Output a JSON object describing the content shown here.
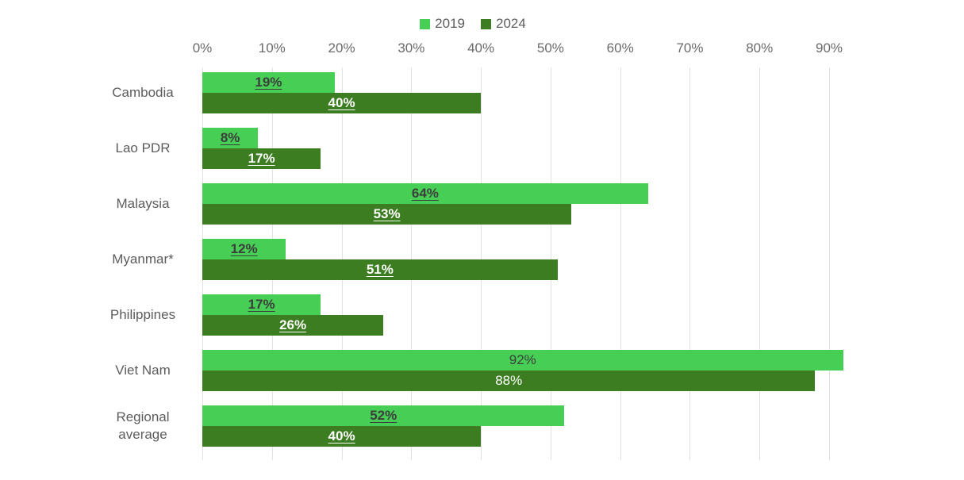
{
  "legend": {
    "items": [
      {
        "label": "2019",
        "color": "#47CE55"
      },
      {
        "label": "2024",
        "color": "#3B7D20"
      }
    ]
  },
  "axis": {
    "tick_labels": [
      "0%",
      "10%",
      "20%",
      "30%",
      "40%",
      "50%",
      "60%",
      "70%",
      "80%",
      "90%"
    ]
  },
  "chart_data": {
    "type": "bar",
    "orientation": "horizontal",
    "title": "",
    "xlabel": "",
    "ylabel": "",
    "xlim": [
      0,
      90
    ],
    "grid": true,
    "legend_position": "top-center",
    "categories": [
      "Cambodia",
      "Lao PDR",
      "Malaysia",
      "Myanmar*",
      "Philippines",
      "Viet Nam",
      "Regional average"
    ],
    "series": [
      {
        "name": "2019",
        "color": "#47CE55",
        "label_color": "#3d3d3d",
        "values": [
          19,
          8,
          64,
          12,
          17,
          92,
          52
        ],
        "labels": [
          "19%",
          "8%",
          "64%",
          "12%",
          "17%",
          "92%",
          "52%"
        ]
      },
      {
        "name": "2024",
        "color": "#3B7D20",
        "label_color": "#ffffff",
        "values": [
          40,
          17,
          53,
          51,
          26,
          88,
          40
        ],
        "labels": [
          "40%",
          "17%",
          "53%",
          "51%",
          "26%",
          "88%",
          "40%"
        ]
      }
    ],
    "label_underline_by_category": [
      true,
      true,
      true,
      true,
      true,
      false,
      true
    ]
  },
  "layout_hints": {
    "gridline_color": "#e2e2e2",
    "text_color": "#5c5c5c"
  }
}
